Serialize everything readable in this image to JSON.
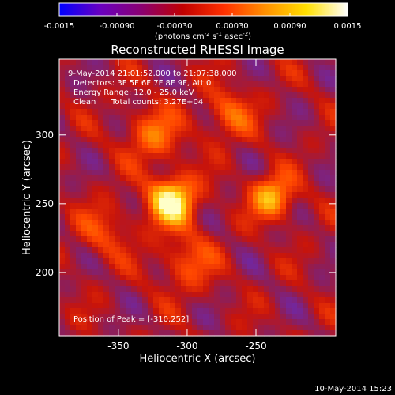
{
  "chart_data": {
    "type": "heatmap",
    "title": "Reconstructed RHESSI Image",
    "xlabel": "Heliocentric X (arcsec)",
    "ylabel": "Heliocentric Y (arcsec)",
    "xlim": [
      -393,
      -192
    ],
    "ylim": [
      154,
      355
    ],
    "x_ticks": [
      -350,
      -300,
      -250
    ],
    "x_tick_labels": [
      "-350",
      "-300",
      "-250"
    ],
    "y_ticks": [
      200,
      250,
      300
    ],
    "y_tick_labels": [
      "200",
      "250",
      "300"
    ],
    "colorbar": {
      "range": [
        -0.0015,
        0.0015
      ],
      "ticks": [
        -0.0015,
        -0.0009,
        -0.0003,
        0.0003,
        0.0009,
        0.0015
      ],
      "tick_labels": [
        "-0.0015",
        "-0.00090",
        "-0.00030",
        "0.00030",
        "0.00090",
        "0.0015"
      ],
      "label_main": "(photons cm",
      "label_exp1": "-2",
      "label_mid": " s",
      "label_exp2": "-1",
      "label_mid2": " asec",
      "label_exp3": "-2",
      "label_end": ")",
      "colors": [
        "#0000ff",
        "#6a00c0",
        "#8a0070",
        "#c00000",
        "#ff3000",
        "#ff9000",
        "#ffe000",
        "#ffffff"
      ]
    },
    "peak": [
      -310,
      252
    ],
    "sources": [
      {
        "x": -311,
        "y": 252,
        "amp": 1.0,
        "sigma": 12
      },
      {
        "x": -325,
        "y": 300,
        "amp": 0.45,
        "sigma": 14
      },
      {
        "x": -238,
        "y": 255,
        "amp": 0.7,
        "sigma": 11
      },
      {
        "x": -300,
        "y": 208,
        "amp": 0.35,
        "sigma": 15
      },
      {
        "x": -270,
        "y": 315,
        "amp": 0.4,
        "sigma": 13
      },
      {
        "x": -360,
        "y": 230,
        "amp": 0.3,
        "sigma": 14
      }
    ]
  },
  "info": {
    "line1": "9-May-2014 21:01:52.000 to 21:07:38.000",
    "line2": "Detectors: 3F 5F 6F 7F 8F 9F, Att 0",
    "line3": "Energy Range: 12.0 - 25.0 keV",
    "line4_a": "Clean",
    "line4_b": "Total counts: 3.27E+04",
    "peak_label": "Position of Peak = [-310,252]"
  },
  "timestamp": "10-May-2014 15:23"
}
